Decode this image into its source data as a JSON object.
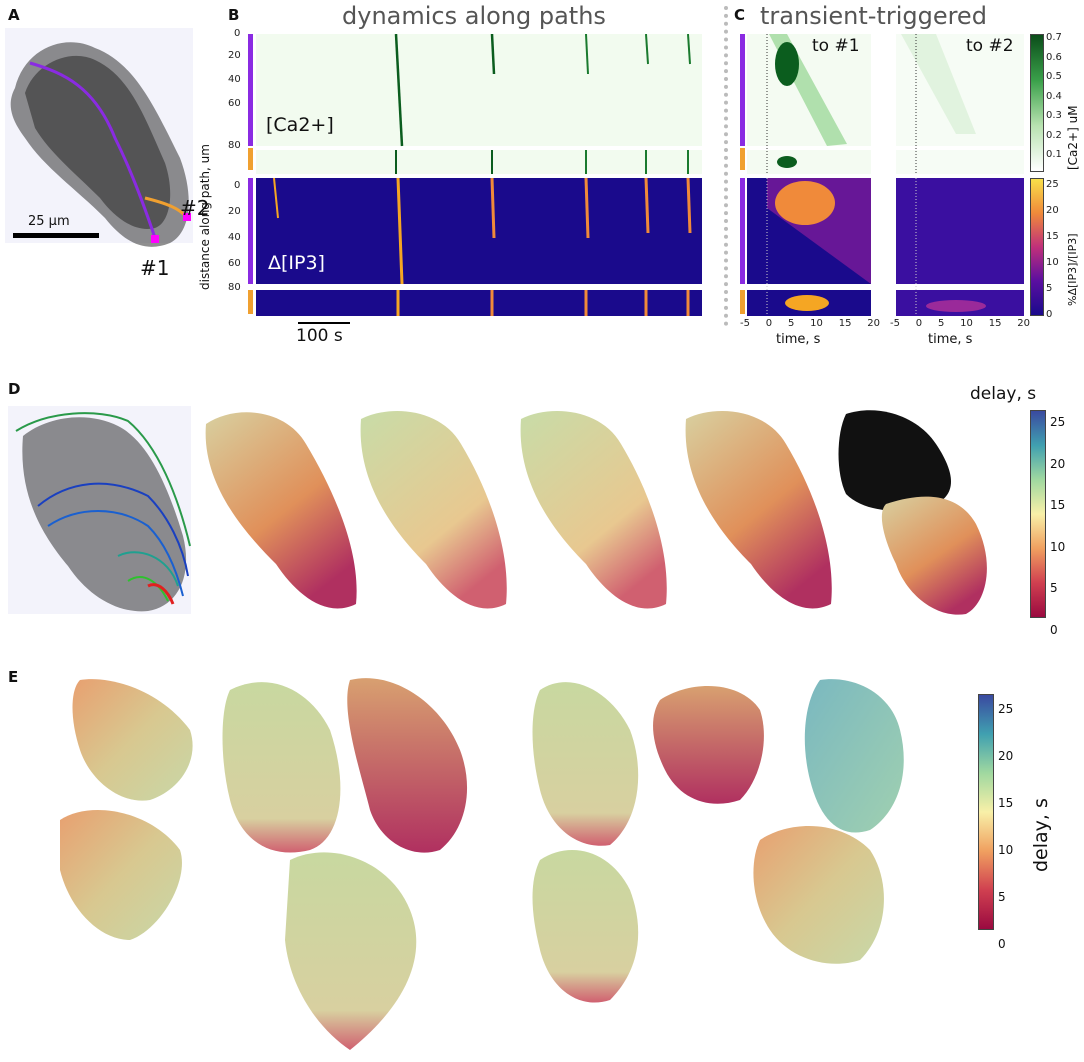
{
  "panels": {
    "a": {
      "label": "A",
      "scalebar": "25 µm",
      "marker1": "#1",
      "marker2": "#2"
    },
    "b": {
      "label": "B",
      "title": "dynamics along paths",
      "ylabel": "distance along path, um",
      "ca_label": "[Ca2+]",
      "ip3_label": "Δ[IP3]",
      "timebar": "100 s",
      "yticks": [
        "0",
        "20",
        "40",
        "60",
        "80"
      ]
    },
    "c": {
      "label": "C",
      "title": "transient-triggered",
      "to1": "to #1",
      "to2": "to #2",
      "xlabel": "time, s",
      "xticks": [
        "-5",
        "0",
        "5",
        "10",
        "15",
        "20"
      ],
      "ca_cbar": {
        "label": "[Ca2+] uM",
        "ticks": [
          "0.7",
          "0.6",
          "0.5",
          "0.4",
          "0.3",
          "0.2",
          "0.1"
        ]
      },
      "ip3_cbar": {
        "label": "%Δ[IP3]/[IP3]",
        "ticks": [
          "25",
          "20",
          "15",
          "10",
          "5",
          "0"
        ]
      }
    },
    "d": {
      "label": "D",
      "cbar_title": "delay, s",
      "ticks": [
        "25",
        "20",
        "15",
        "10",
        "5",
        "0"
      ]
    },
    "e": {
      "label": "E",
      "cbar_label": "delay, s",
      "ticks": [
        "25",
        "20",
        "15",
        "10",
        "5",
        "0"
      ]
    }
  },
  "colors": {
    "ca_dark": "#0b5d1e",
    "ip3_bg": "#1a0a8c",
    "ip3_hot": "#f5a623",
    "path1": "#8a2be2",
    "path2": "#f0a030",
    "marker": "#ff00ff"
  }
}
